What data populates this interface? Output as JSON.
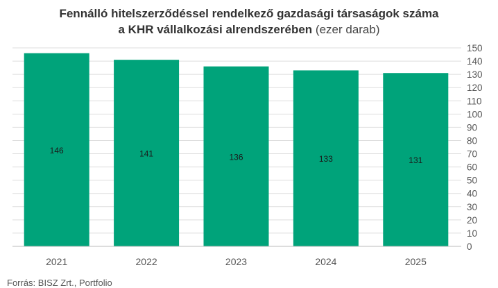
{
  "chart_data": {
    "type": "bar",
    "title_line1": "Fennálló hitelszerződéssel rendelkező gazdasági társaságok száma",
    "title_line2_bold": "a KHR vállalkozási alrendszerében",
    "title_line2_unit": "(ezer darab)",
    "categories": [
      "2021",
      "2022",
      "2023",
      "2024",
      "2025"
    ],
    "values": [
      146,
      141,
      136,
      133,
      131
    ],
    "data_labels": [
      "146",
      "141",
      "136",
      "133",
      "131"
    ],
    "ylim": [
      0,
      150
    ],
    "y_ticks": [
      0,
      10,
      20,
      30,
      40,
      50,
      60,
      70,
      80,
      90,
      100,
      110,
      120,
      130,
      140,
      150
    ],
    "y_axis_side": "right",
    "grid": true,
    "bar_color": "#00a37a",
    "grid_color": "#dddddd",
    "source": "Forrás: BISZ Zrt., Portfolio"
  }
}
